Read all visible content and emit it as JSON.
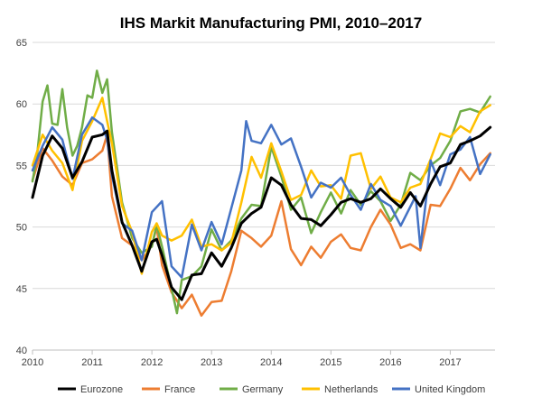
{
  "chart_data": {
    "type": "line",
    "title": "IHS Markit Manufacturing PMI, 2010–2017",
    "xlabel": "",
    "ylabel": "",
    "xlim": [
      2010.0,
      2017.75
    ],
    "ylim": [
      40,
      65
    ],
    "y_ticks": [
      "40",
      "45",
      "50",
      "55",
      "60",
      "65"
    ],
    "x_ticks": [
      "2010",
      "2011",
      "2012",
      "2013",
      "2014",
      "2015",
      "2016",
      "2017"
    ],
    "grid": "horizontal",
    "legend_position": "bottom",
    "series": [
      {
        "name": "Eurozone",
        "color": "#000000",
        "points": [
          [
            2010.0,
            52.4
          ],
          [
            2010.17,
            55.8
          ],
          [
            2010.33,
            57.4
          ],
          [
            2010.5,
            56.4
          ],
          [
            2010.67,
            54.0
          ],
          [
            2010.83,
            55.3
          ],
          [
            2011.0,
            57.3
          ],
          [
            2011.17,
            57.5
          ],
          [
            2011.25,
            57.8
          ],
          [
            2011.33,
            54.6
          ],
          [
            2011.5,
            50.4
          ],
          [
            2011.67,
            48.5
          ],
          [
            2011.83,
            46.4
          ],
          [
            2012.0,
            48.8
          ],
          [
            2012.08,
            49.0
          ],
          [
            2012.17,
            47.7
          ],
          [
            2012.33,
            45.1
          ],
          [
            2012.5,
            44.1
          ],
          [
            2012.67,
            46.1
          ],
          [
            2012.83,
            46.2
          ],
          [
            2013.0,
            47.9
          ],
          [
            2013.17,
            46.8
          ],
          [
            2013.33,
            48.3
          ],
          [
            2013.5,
            50.3
          ],
          [
            2013.67,
            51.1
          ],
          [
            2013.83,
            51.6
          ],
          [
            2014.0,
            54.0
          ],
          [
            2014.17,
            53.4
          ],
          [
            2014.33,
            51.8
          ],
          [
            2014.5,
            50.7
          ],
          [
            2014.67,
            50.6
          ],
          [
            2014.83,
            50.1
          ],
          [
            2015.0,
            51.0
          ],
          [
            2015.17,
            52.0
          ],
          [
            2015.33,
            52.3
          ],
          [
            2015.5,
            52.0
          ],
          [
            2015.67,
            52.3
          ],
          [
            2015.83,
            53.1
          ],
          [
            2016.0,
            52.3
          ],
          [
            2016.17,
            51.6
          ],
          [
            2016.33,
            52.8
          ],
          [
            2016.5,
            51.7
          ],
          [
            2016.67,
            53.5
          ],
          [
            2016.83,
            54.9
          ],
          [
            2017.0,
            55.2
          ],
          [
            2017.17,
            56.7
          ],
          [
            2017.33,
            57.0
          ],
          [
            2017.5,
            57.4
          ],
          [
            2017.67,
            58.1
          ]
        ]
      },
      {
        "name": "France",
        "color": "#ed7d31",
        "points": [
          [
            2010.0,
            53.8
          ],
          [
            2010.17,
            56.4
          ],
          [
            2010.33,
            55.4
          ],
          [
            2010.5,
            54.1
          ],
          [
            2010.67,
            53.4
          ],
          [
            2010.83,
            55.2
          ],
          [
            2011.0,
            55.5
          ],
          [
            2011.17,
            56.2
          ],
          [
            2011.25,
            57.5
          ],
          [
            2011.33,
            52.5
          ],
          [
            2011.5,
            49.1
          ],
          [
            2011.67,
            48.5
          ],
          [
            2011.83,
            47.3
          ],
          [
            2012.0,
            48.5
          ],
          [
            2012.08,
            50.0
          ],
          [
            2012.17,
            46.9
          ],
          [
            2012.33,
            44.7
          ],
          [
            2012.5,
            43.4
          ],
          [
            2012.67,
            44.5
          ],
          [
            2012.83,
            42.8
          ],
          [
            2013.0,
            43.9
          ],
          [
            2013.17,
            44.0
          ],
          [
            2013.33,
            46.4
          ],
          [
            2013.5,
            49.7
          ],
          [
            2013.67,
            49.1
          ],
          [
            2013.83,
            48.4
          ],
          [
            2014.0,
            49.3
          ],
          [
            2014.17,
            52.1
          ],
          [
            2014.33,
            48.2
          ],
          [
            2014.5,
            46.9
          ],
          [
            2014.67,
            48.4
          ],
          [
            2014.83,
            47.5
          ],
          [
            2015.0,
            48.8
          ],
          [
            2015.17,
            49.4
          ],
          [
            2015.33,
            48.3
          ],
          [
            2015.5,
            48.1
          ],
          [
            2015.67,
            50.0
          ],
          [
            2015.83,
            51.4
          ],
          [
            2016.0,
            50.2
          ],
          [
            2016.17,
            48.3
          ],
          [
            2016.33,
            48.6
          ],
          [
            2016.5,
            48.1
          ],
          [
            2016.67,
            51.8
          ],
          [
            2016.83,
            51.7
          ],
          [
            2017.0,
            53.1
          ],
          [
            2017.17,
            54.8
          ],
          [
            2017.33,
            53.8
          ],
          [
            2017.5,
            55.1
          ],
          [
            2017.67,
            56.0
          ]
        ]
      },
      {
        "name": "Germany",
        "color": "#70ad47",
        "points": [
          [
            2010.0,
            53.7
          ],
          [
            2010.08,
            56.0
          ],
          [
            2010.17,
            60.2
          ],
          [
            2010.25,
            61.5
          ],
          [
            2010.33,
            58.4
          ],
          [
            2010.42,
            58.3
          ],
          [
            2010.5,
            61.2
          ],
          [
            2010.58,
            58.1
          ],
          [
            2010.67,
            55.8
          ],
          [
            2010.75,
            56.6
          ],
          [
            2010.83,
            58.1
          ],
          [
            2010.92,
            60.7
          ],
          [
            2011.0,
            60.5
          ],
          [
            2011.08,
            62.7
          ],
          [
            2011.17,
            60.9
          ],
          [
            2011.25,
            62.0
          ],
          [
            2011.33,
            57.7
          ],
          [
            2011.5,
            52.0
          ],
          [
            2011.67,
            49.1
          ],
          [
            2011.83,
            47.9
          ],
          [
            2012.0,
            48.4
          ],
          [
            2012.08,
            50.2
          ],
          [
            2012.17,
            48.4
          ],
          [
            2012.33,
            45.0
          ],
          [
            2012.42,
            43.0
          ],
          [
            2012.5,
            45.7
          ],
          [
            2012.67,
            46.0
          ],
          [
            2012.83,
            46.8
          ],
          [
            2013.0,
            49.8
          ],
          [
            2013.17,
            48.1
          ],
          [
            2013.33,
            48.9
          ],
          [
            2013.5,
            50.7
          ],
          [
            2013.67,
            51.8
          ],
          [
            2013.83,
            51.7
          ],
          [
            2014.0,
            56.5
          ],
          [
            2014.17,
            54.1
          ],
          [
            2014.33,
            51.4
          ],
          [
            2014.5,
            52.4
          ],
          [
            2014.67,
            49.5
          ],
          [
            2014.83,
            51.2
          ],
          [
            2015.0,
            52.8
          ],
          [
            2015.17,
            51.1
          ],
          [
            2015.33,
            53.0
          ],
          [
            2015.5,
            51.8
          ],
          [
            2015.67,
            52.9
          ],
          [
            2015.83,
            52.1
          ],
          [
            2016.0,
            50.5
          ],
          [
            2016.17,
            51.8
          ],
          [
            2016.33,
            54.4
          ],
          [
            2016.5,
            53.8
          ],
          [
            2016.67,
            55.0
          ],
          [
            2016.83,
            55.6
          ],
          [
            2017.0,
            57.0
          ],
          [
            2017.17,
            59.4
          ],
          [
            2017.33,
            59.6
          ],
          [
            2017.5,
            59.3
          ],
          [
            2017.67,
            60.6
          ]
        ]
      },
      {
        "name": "Netherlands",
        "color": "#ffc000",
        "points": [
          [
            2010.0,
            55.0
          ],
          [
            2010.17,
            57.5
          ],
          [
            2010.33,
            56.2
          ],
          [
            2010.5,
            55.2
          ],
          [
            2010.67,
            53.0
          ],
          [
            2010.83,
            57.0
          ],
          [
            2011.0,
            58.6
          ],
          [
            2011.17,
            60.5
          ],
          [
            2011.25,
            58.6
          ],
          [
            2011.33,
            56.8
          ],
          [
            2011.5,
            51.7
          ],
          [
            2011.67,
            49.6
          ],
          [
            2011.83,
            46.2
          ],
          [
            2012.0,
            49.6
          ],
          [
            2012.08,
            50.3
          ],
          [
            2012.17,
            49.3
          ],
          [
            2012.33,
            48.9
          ],
          [
            2012.5,
            49.3
          ],
          [
            2012.67,
            50.6
          ],
          [
            2012.83,
            48.4
          ],
          [
            2013.0,
            48.6
          ],
          [
            2013.17,
            48.1
          ],
          [
            2013.33,
            48.7
          ],
          [
            2013.5,
            52.0
          ],
          [
            2013.67,
            55.7
          ],
          [
            2013.83,
            54.0
          ],
          [
            2014.0,
            56.8
          ],
          [
            2014.17,
            54.5
          ],
          [
            2014.33,
            52.2
          ],
          [
            2014.5,
            52.6
          ],
          [
            2014.67,
            54.6
          ],
          [
            2014.83,
            53.3
          ],
          [
            2015.0,
            53.4
          ],
          [
            2015.17,
            52.3
          ],
          [
            2015.33,
            55.8
          ],
          [
            2015.5,
            56.0
          ],
          [
            2015.67,
            53.1
          ],
          [
            2015.83,
            54.1
          ],
          [
            2016.0,
            52.4
          ],
          [
            2016.17,
            52.0
          ],
          [
            2016.33,
            53.2
          ],
          [
            2016.5,
            53.5
          ],
          [
            2016.67,
            55.5
          ],
          [
            2016.83,
            57.6
          ],
          [
            2017.0,
            57.3
          ],
          [
            2017.17,
            58.2
          ],
          [
            2017.33,
            57.7
          ],
          [
            2017.5,
            59.4
          ],
          [
            2017.67,
            59.9
          ]
        ]
      },
      {
        "name": "United Kingdom",
        "color": "#4472c4",
        "points": [
          [
            2010.0,
            54.6
          ],
          [
            2010.17,
            56.6
          ],
          [
            2010.33,
            58.1
          ],
          [
            2010.5,
            57.1
          ],
          [
            2010.67,
            53.9
          ],
          [
            2010.83,
            57.5
          ],
          [
            2011.0,
            58.9
          ],
          [
            2011.17,
            58.3
          ],
          [
            2011.25,
            57.1
          ],
          [
            2011.33,
            54.2
          ],
          [
            2011.5,
            50.3
          ],
          [
            2011.67,
            49.7
          ],
          [
            2011.83,
            47.3
          ],
          [
            2012.0,
            51.2
          ],
          [
            2012.17,
            52.1
          ],
          [
            2012.33,
            46.8
          ],
          [
            2012.5,
            45.9
          ],
          [
            2012.67,
            50.2
          ],
          [
            2012.83,
            48.1
          ],
          [
            2013.0,
            50.4
          ],
          [
            2013.17,
            48.6
          ],
          [
            2013.33,
            51.5
          ],
          [
            2013.5,
            54.6
          ],
          [
            2013.58,
            58.6
          ],
          [
            2013.67,
            57.0
          ],
          [
            2013.83,
            56.8
          ],
          [
            2014.0,
            58.3
          ],
          [
            2014.17,
            56.7
          ],
          [
            2014.33,
            57.2
          ],
          [
            2014.5,
            54.9
          ],
          [
            2014.67,
            52.4
          ],
          [
            2014.83,
            53.6
          ],
          [
            2015.0,
            53.2
          ],
          [
            2015.17,
            54.0
          ],
          [
            2015.33,
            52.6
          ],
          [
            2015.5,
            51.4
          ],
          [
            2015.67,
            53.5
          ],
          [
            2015.83,
            52.2
          ],
          [
            2016.0,
            51.7
          ],
          [
            2016.17,
            50.1
          ],
          [
            2016.42,
            52.5
          ],
          [
            2016.5,
            48.3
          ],
          [
            2016.67,
            55.4
          ],
          [
            2016.83,
            53.4
          ],
          [
            2017.0,
            55.9
          ],
          [
            2017.17,
            56.3
          ],
          [
            2017.33,
            57.3
          ],
          [
            2017.5,
            54.3
          ],
          [
            2017.67,
            55.9
          ]
        ]
      }
    ]
  }
}
